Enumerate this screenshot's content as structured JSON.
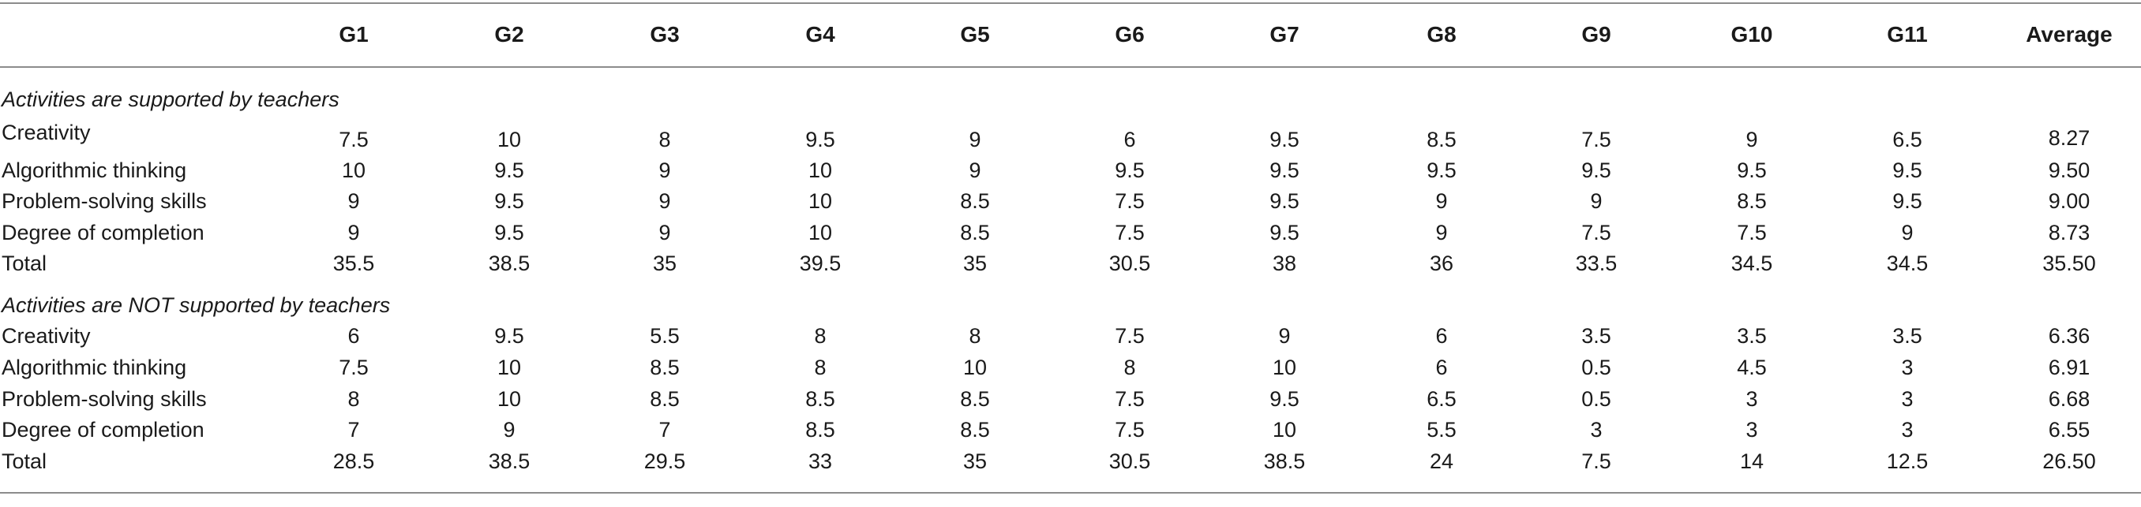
{
  "columns": [
    "G1",
    "G2",
    "G3",
    "G4",
    "G5",
    "G6",
    "G7",
    "G8",
    "G9",
    "G10",
    "G11",
    "Average"
  ],
  "sections": [
    {
      "title": "Activities are supported by teachers",
      "rows": [
        {
          "label": "Creativity",
          "values": [
            "7.5",
            "10",
            "8",
            "9.5",
            "9",
            "6",
            "9.5",
            "8.5",
            "7.5",
            "9",
            "6.5",
            "8.27"
          ]
        },
        {
          "label": "Algorithmic thinking",
          "values": [
            "10",
            "9.5",
            "9",
            "10",
            "9",
            "9.5",
            "9.5",
            "9.5",
            "9.5",
            "9.5",
            "9.5",
            "9.50"
          ]
        },
        {
          "label": "Problem-solving skills",
          "values": [
            "9",
            "9.5",
            "9",
            "10",
            "8.5",
            "7.5",
            "9.5",
            "9",
            "9",
            "8.5",
            "9.5",
            "9.00"
          ]
        },
        {
          "label": "Degree of completion",
          "values": [
            "9",
            "9.5",
            "9",
            "10",
            "8.5",
            "7.5",
            "9.5",
            "9",
            "7.5",
            "7.5",
            "9",
            "8.73"
          ]
        },
        {
          "label": "Total",
          "values": [
            "35.5",
            "38.5",
            "35",
            "39.5",
            "35",
            "30.5",
            "38",
            "36",
            "33.5",
            "34.5",
            "34.5",
            "35.50"
          ]
        }
      ]
    },
    {
      "title": "Activities are NOT supported by teachers",
      "rows": [
        {
          "label": "Creativity",
          "values": [
            "6",
            "9.5",
            "5.5",
            "8",
            "8",
            "7.5",
            "9",
            "6",
            "3.5",
            "3.5",
            "3.5",
            "6.36"
          ]
        },
        {
          "label": "Algorithmic thinking",
          "values": [
            "7.5",
            "10",
            "8.5",
            "8",
            "10",
            "8",
            "10",
            "6",
            "0.5",
            "4.5",
            "3",
            "6.91"
          ]
        },
        {
          "label": "Problem-solving skills",
          "values": [
            "8",
            "10",
            "8.5",
            "8.5",
            "8.5",
            "7.5",
            "9.5",
            "6.5",
            "0.5",
            "3",
            "3",
            "6.68"
          ]
        },
        {
          "label": "Degree of completion",
          "values": [
            "7",
            "9",
            "7",
            "8.5",
            "8.5",
            "7.5",
            "10",
            "5.5",
            "3",
            "3",
            "3",
            "6.55"
          ]
        },
        {
          "label": "Total",
          "values": [
            "28.5",
            "38.5",
            "29.5",
            "33",
            "35",
            "30.5",
            "38.5",
            "24",
            "7.5",
            "14",
            "12.5",
            "26.50"
          ]
        }
      ]
    }
  ]
}
